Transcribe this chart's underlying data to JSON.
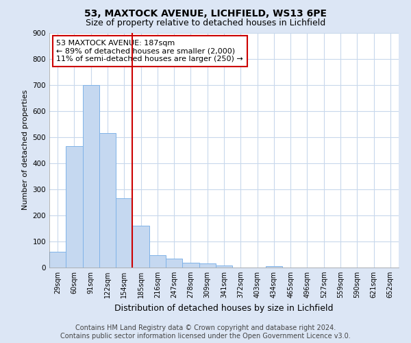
{
  "title": "53, MAXTOCK AVENUE, LICHFIELD, WS13 6PE",
  "subtitle": "Size of property relative to detached houses in Lichfield",
  "xlabel": "Distribution of detached houses by size in Lichfield",
  "ylabel": "Number of detached properties",
  "categories": [
    "29sqm",
    "60sqm",
    "91sqm",
    "122sqm",
    "154sqm",
    "185sqm",
    "216sqm",
    "247sqm",
    "278sqm",
    "309sqm",
    "341sqm",
    "372sqm",
    "403sqm",
    "434sqm",
    "465sqm",
    "496sqm",
    "527sqm",
    "559sqm",
    "590sqm",
    "621sqm",
    "652sqm"
  ],
  "values": [
    60,
    465,
    700,
    515,
    265,
    160,
    48,
    33,
    18,
    15,
    8,
    0,
    0,
    5,
    0,
    0,
    0,
    0,
    0,
    0,
    0
  ],
  "bar_color": "#c5d8f0",
  "bar_edge_color": "#7fb3e8",
  "vline_color": "#cc0000",
  "vline_x_index": 5,
  "ylim": [
    0,
    900
  ],
  "yticks": [
    0,
    100,
    200,
    300,
    400,
    500,
    600,
    700,
    800,
    900
  ],
  "annotation_line1": "53 MAXTOCK AVENUE: 187sqm",
  "annotation_line2": "← 89% of detached houses are smaller (2,000)",
  "annotation_line3": "11% of semi-detached houses are larger (250) →",
  "annotation_box_color": "#ffffff",
  "annotation_box_edge": "#cc0000",
  "footer_line1": "Contains HM Land Registry data © Crown copyright and database right 2024.",
  "footer_line2": "Contains public sector information licensed under the Open Government Licence v3.0.",
  "fig_bg_color": "#dce6f5",
  "plot_bg_color": "#ffffff",
  "grid_color": "#c8d8ec",
  "title_fontsize": 10,
  "subtitle_fontsize": 9,
  "xlabel_fontsize": 9,
  "ylabel_fontsize": 8,
  "tick_fontsize": 7.5,
  "footer_fontsize": 7,
  "annot_fontsize": 8
}
